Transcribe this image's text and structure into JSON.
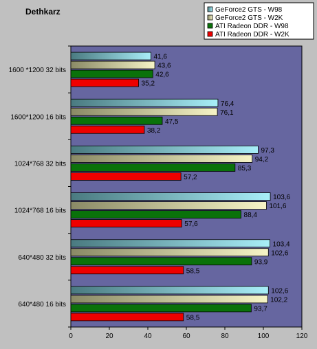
{
  "chart_data": {
    "type": "bar",
    "orientation": "horizontal",
    "title": "Dethkarz",
    "xlabel": "",
    "ylabel": "",
    "xlim": [
      0,
      120
    ],
    "x_ticks": [
      "0",
      "20",
      "40",
      "60",
      "80",
      "100",
      "120"
    ],
    "grid": false,
    "legend_position": "top-right",
    "categories": [
      "1600 *1200 32 bits",
      "1600*1200 16 bits",
      "1024*768 32 bits",
      "1024*768 16 bits",
      "640*480 32 bits",
      "640*480 16 bits"
    ],
    "series": [
      {
        "name": "GeForce2 GTS - W98",
        "values": [
          41.6,
          76.4,
          97.3,
          103.6,
          103.4,
          102.6
        ],
        "labels": [
          "41,6",
          "76,4",
          "97,3",
          "103,6",
          "103,4",
          "102,6"
        ]
      },
      {
        "name": "GeForce2 GTS - W2K",
        "values": [
          43.6,
          76.1,
          94.2,
          101.6,
          102.6,
          102.2
        ],
        "labels": [
          "43,6",
          "76,1",
          "94,2",
          "101,6",
          "102,6",
          "102,2"
        ]
      },
      {
        "name": "ATI Radeon DDR - W98",
        "values": [
          42.6,
          47.5,
          85.3,
          88.4,
          93.9,
          93.7
        ],
        "labels": [
          "42,6",
          "47,5",
          "85,3",
          "88,4",
          "93,9",
          "93,7"
        ]
      },
      {
        "name": "ATI Radeon DDR - W2K",
        "values": [
          35.2,
          38.2,
          57.2,
          57.6,
          58.5,
          58.5
        ],
        "labels": [
          "35,2",
          "38,2",
          "57,2",
          "57,6",
          "58,5",
          "58,5"
        ]
      }
    ],
    "colors": {
      "background": "#c0c0c0",
      "plot_area": "#6666a0",
      "series": [
        "#a8eef8",
        "#f6f4c6",
        "#0a720a",
        "#ee0000"
      ],
      "series_shade": [
        "#4a7a80",
        "#8a8a66",
        "#0a720a",
        "#ee0000"
      ]
    }
  }
}
